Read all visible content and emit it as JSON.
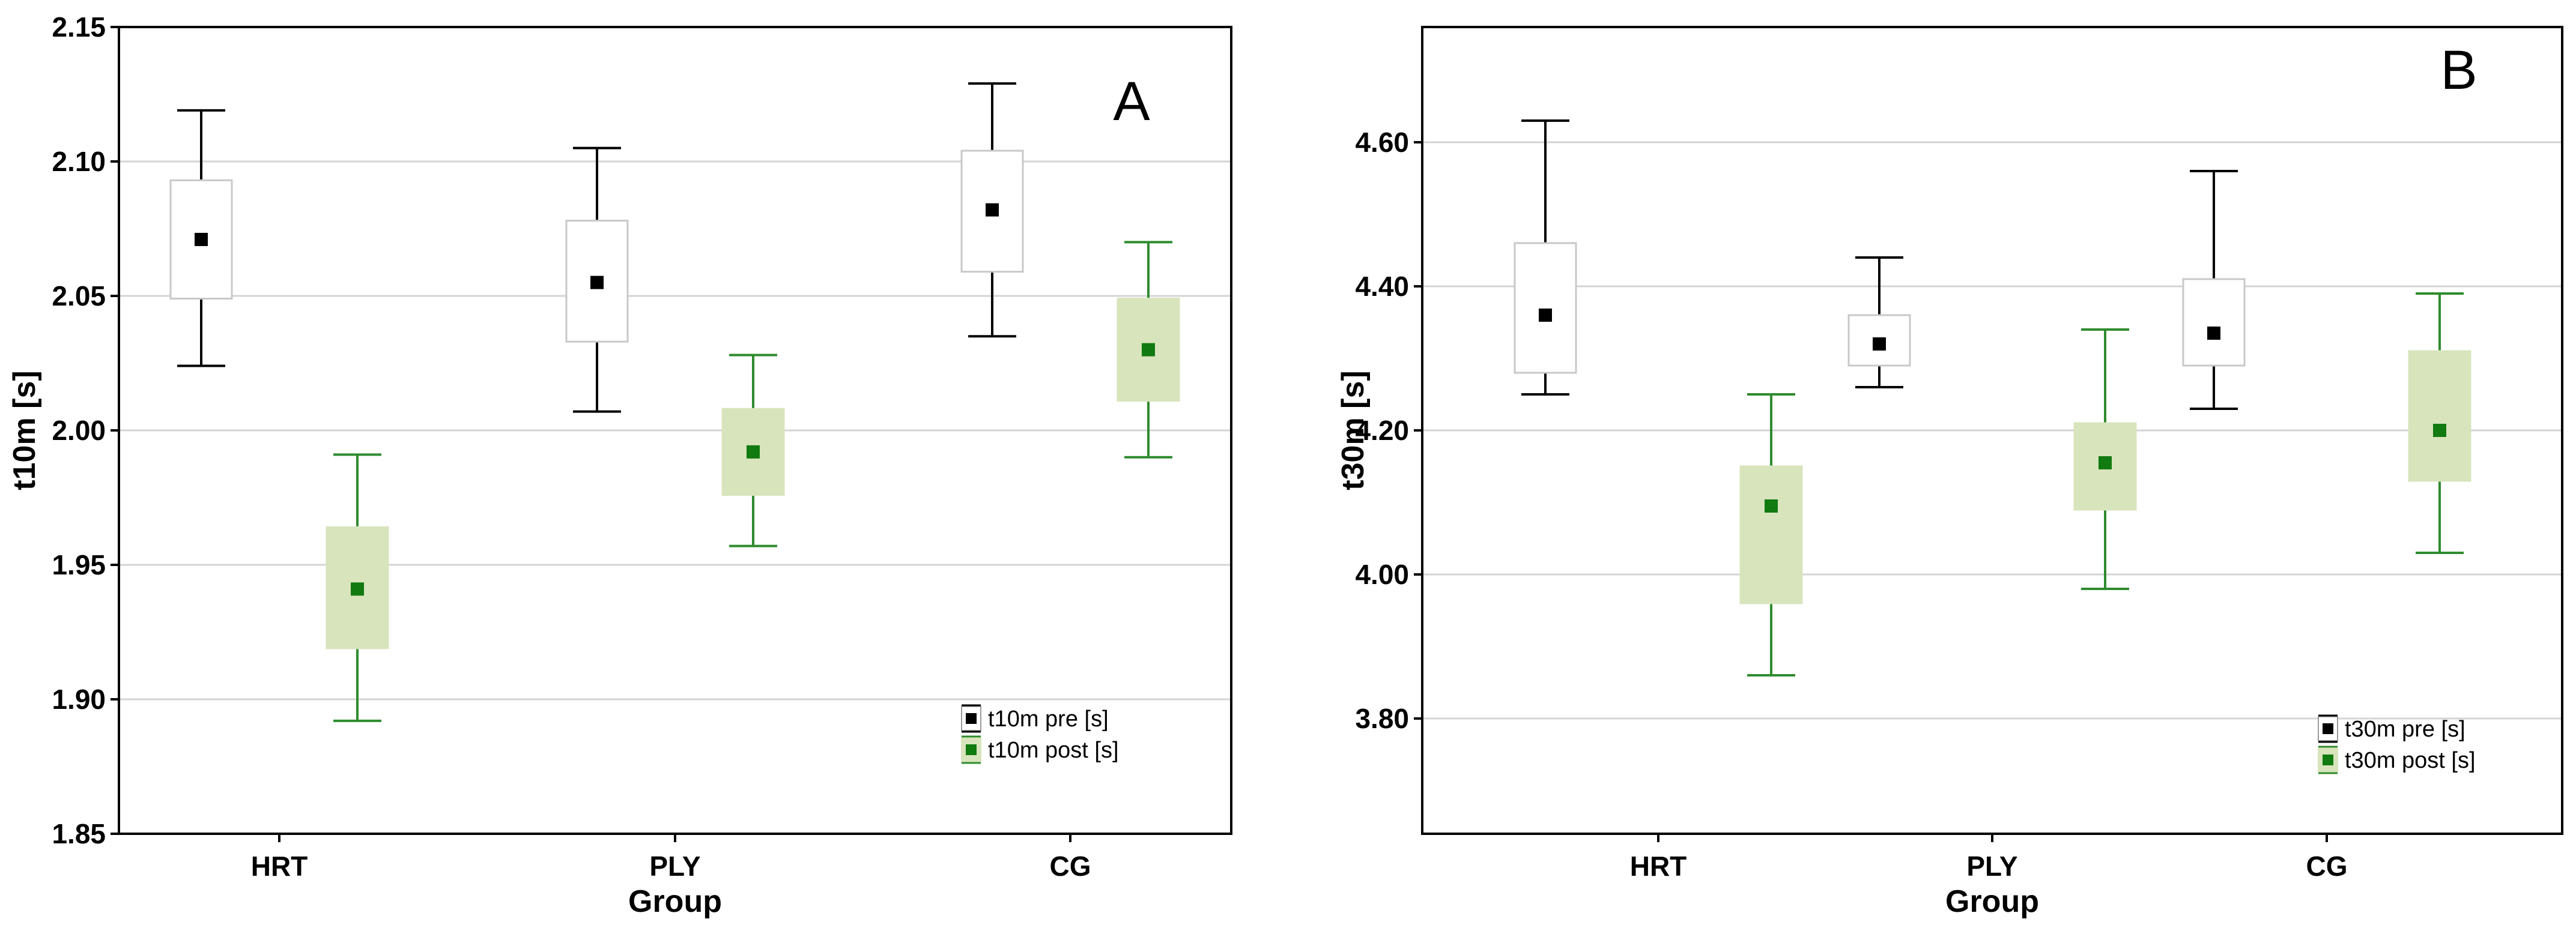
{
  "colors": {
    "pre": "#000000",
    "post": "#2e8b2e",
    "post_box_fill": "#d8e4bc",
    "pre_box_fill": "#ffffff",
    "pre_box_stroke": "#c8c8c8",
    "grid": "#d4d4d4"
  },
  "chart_data": [
    {
      "type": "box",
      "panel_label": "A",
      "xlabel": "Group",
      "ylabel": "t10m [s]",
      "categories": [
        "HRT",
        "PLY",
        "CG"
      ],
      "ylim": [
        1.85,
        2.15
      ],
      "yticks": [
        "1.85",
        "1.90",
        "1.95",
        "2.00",
        "2.05",
        "2.10",
        "2.15"
      ],
      "series": [
        {
          "name": "t10m pre [s]",
          "mean": [
            2.071,
            2.055,
            2.082
          ],
          "box_low": [
            2.049,
            2.033,
            2.059
          ],
          "box_high": [
            2.093,
            2.078,
            2.104
          ],
          "whisker_low": [
            2.024,
            2.007,
            2.035
          ],
          "whisker_high": [
            2.119,
            2.105,
            2.129
          ]
        },
        {
          "name": "t10m post [s]",
          "mean": [
            1.941,
            1.992,
            2.03
          ],
          "box_low": [
            1.919,
            1.976,
            2.011
          ],
          "box_high": [
            1.964,
            2.008,
            2.049
          ],
          "whisker_low": [
            1.892,
            1.957,
            1.99
          ],
          "whisker_high": [
            1.991,
            2.028,
            2.07
          ]
        }
      ]
    },
    {
      "type": "box",
      "panel_label": "B",
      "xlabel": "Group",
      "ylabel": "t30m [s]",
      "categories": [
        "HRT",
        "PLY",
        "CG"
      ],
      "ylim": [
        3.64,
        4.76
      ],
      "yticks": [
        "3.80",
        "4.00",
        "4.20",
        "4.40",
        "4.60"
      ],
      "series": [
        {
          "name": "t30m pre [s]",
          "mean": [
            4.36,
            4.32,
            4.335
          ],
          "box_low": [
            4.28,
            4.29,
            4.29
          ],
          "box_high": [
            4.46,
            4.36,
            4.41
          ],
          "whisker_low": [
            4.25,
            4.26,
            4.23
          ],
          "whisker_high": [
            4.63,
            4.44,
            4.56
          ]
        },
        {
          "name": "t30m post [s]",
          "mean": [
            4.095,
            4.155,
            4.2
          ],
          "box_low": [
            3.96,
            4.09,
            4.13
          ],
          "box_high": [
            4.15,
            4.21,
            4.31
          ],
          "whisker_low": [
            3.86,
            3.98,
            4.03
          ],
          "whisker_high": [
            4.25,
            4.34,
            4.39
          ]
        }
      ]
    }
  ]
}
